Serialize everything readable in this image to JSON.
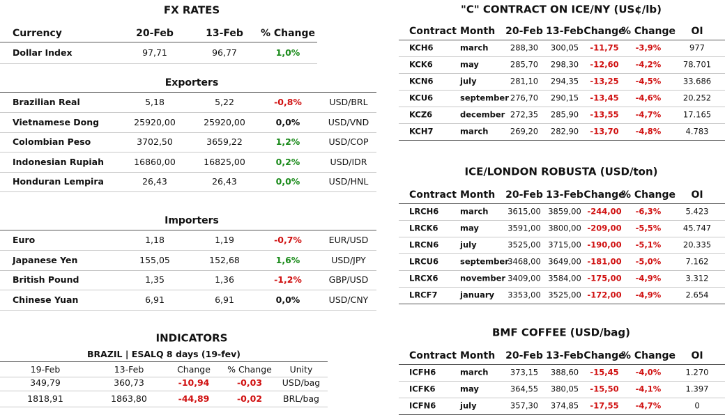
{
  "fx": {
    "title": "FX RATES",
    "headers": [
      "Currency",
      "20-Feb",
      "13-Feb",
      "% Change"
    ],
    "dollar_row": [
      "Dollar Index",
      "97,71",
      "96,77",
      "1,0%"
    ],
    "dollar_color": "#1a8a1a"
  },
  "exporters": {
    "title": "Exporters",
    "rows": [
      [
        "Brazilian Real",
        "5,18",
        "5,22",
        "-0,8%",
        "USD/BRL"
      ],
      [
        "Vietnamese Dong",
        "25920,00",
        "25920,00",
        "0,0%",
        "USD/VND"
      ],
      [
        "Colombian Peso",
        "3702,50",
        "3659,22",
        "1,2%",
        "USD/COP"
      ],
      [
        "Indonesian Rupiah",
        "16860,00",
        "16825,00",
        "0,2%",
        "USD/IDR"
      ],
      [
        "Honduran Lempira",
        "26,43",
        "26,43",
        "0,0%",
        "USD/HNL"
      ]
    ],
    "change_colors": [
      "#d01010",
      "#111111",
      "#1a8a1a",
      "#1a8a1a",
      "#1a8a1a"
    ]
  },
  "importers": {
    "title": "Importers",
    "rows": [
      [
        "Euro",
        "1,18",
        "1,19",
        "-0,7%",
        "EUR/USD"
      ],
      [
        "Japanese Yen",
        "155,05",
        "152,68",
        "1,6%",
        "USD/JPY"
      ],
      [
        "British Pound",
        "1,35",
        "1,36",
        "-1,2%",
        "GBP/USD"
      ],
      [
        "Chinese Yuan",
        "6,91",
        "6,91",
        "0,0%",
        "USD/CNY"
      ]
    ],
    "change_colors": [
      "#d01010",
      "#1a8a1a",
      "#d01010",
      "#111111"
    ]
  },
  "indicators": {
    "title": "INDICATORS",
    "subtitle": "BRAZIL | ESALQ 8 days (19-fev)",
    "headers": [
      "19-Feb",
      "13-Feb",
      "Change",
      "% Change",
      "Unity"
    ],
    "rows": [
      [
        "349,79",
        "360,73",
        "-10,94",
        "-0,03",
        "USD/bag"
      ],
      [
        "1818,91",
        "1863,80",
        "-44,89",
        "-0,02",
        "BRL/bag"
      ]
    ],
    "change_color": "#d01010"
  },
  "contracts": [
    {
      "title": "\"C\" CONTRACT ON ICE/NY (US¢/lb)",
      "headers": [
        "Contract",
        "Month",
        "20-Feb",
        "13-Feb",
        "Change",
        "% Change",
        "OI"
      ],
      "rows": [
        [
          "KCH6",
          "march",
          "288,30",
          "300,05",
          "-11,75",
          "-3,9%",
          "977"
        ],
        [
          "KCK6",
          "may",
          "285,70",
          "298,30",
          "-12,60",
          "-4,2%",
          "78.701"
        ],
        [
          "KCN6",
          "july",
          "281,10",
          "294,35",
          "-13,25",
          "-4,5%",
          "33.686"
        ],
        [
          "KCU6",
          "september",
          "276,70",
          "290,15",
          "-13,45",
          "-4,6%",
          "20.252"
        ],
        [
          "KCZ6",
          "december",
          "272,35",
          "285,90",
          "-13,55",
          "-4,7%",
          "17.165"
        ],
        [
          "KCH7",
          "march",
          "269,20",
          "282,90",
          "-13,70",
          "-4,8%",
          "4.783"
        ]
      ],
      "change_color": "#d01010"
    },
    {
      "title": "ICE/LONDON ROBUSTA (USD/ton)",
      "headers": [
        "Contract",
        "Month",
        "20-Feb",
        "13-Feb",
        "Change",
        "% Change",
        "OI"
      ],
      "rows": [
        [
          "LRCH6",
          "march",
          "3615,00",
          "3859,00",
          "-244,00",
          "-6,3%",
          "5.423"
        ],
        [
          "LRCK6",
          "may",
          "3591,00",
          "3800,00",
          "-209,00",
          "-5,5%",
          "45.747"
        ],
        [
          "LRCN6",
          "july",
          "3525,00",
          "3715,00",
          "-190,00",
          "-5,1%",
          "20.335"
        ],
        [
          "LRCU6",
          "september",
          "3468,00",
          "3649,00",
          "-181,00",
          "-5,0%",
          "7.162"
        ],
        [
          "LRCX6",
          "november",
          "3409,00",
          "3584,00",
          "-175,00",
          "-4,9%",
          "3.312"
        ],
        [
          "LRCF7",
          "january",
          "3353,00",
          "3525,00",
          "-172,00",
          "-4,9%",
          "2.654"
        ]
      ],
      "change_color": "#d01010"
    },
    {
      "title": "BMF COFFEE (USD/bag)",
      "headers": [
        "Contract",
        "Month",
        "20-Feb",
        "13-Feb",
        "Change",
        "% Change",
        "OI"
      ],
      "rows": [
        [
          "ICFH6",
          "march",
          "373,15",
          "388,60",
          "-15,45",
          "-4,0%",
          "1.270"
        ],
        [
          "ICFK6",
          "may",
          "364,55",
          "380,05",
          "-15,50",
          "-4,1%",
          "1.397"
        ],
        [
          "ICFN6",
          "july",
          "357,30",
          "374,85",
          "-17,55",
          "-4,7%",
          "0"
        ]
      ],
      "change_color": "#d01010"
    }
  ]
}
